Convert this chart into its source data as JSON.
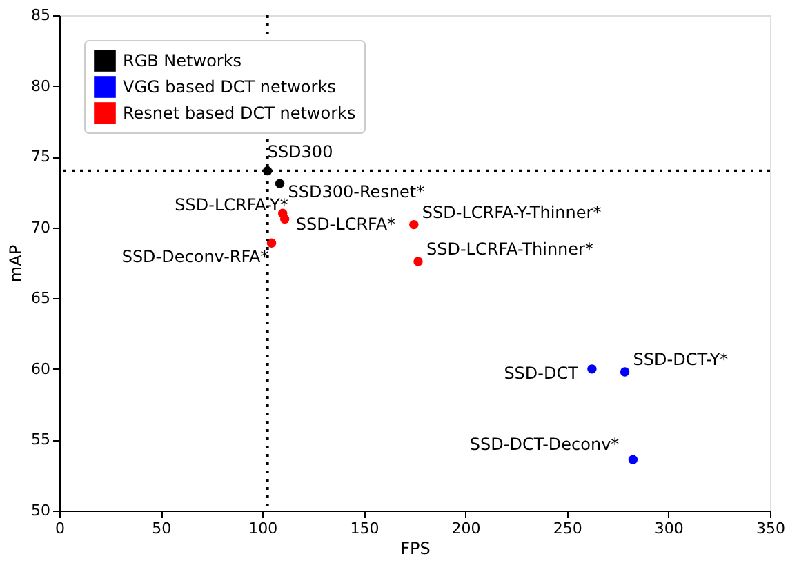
{
  "chart_data": {
    "type": "scatter",
    "xlabel": "FPS",
    "ylabel": "mAP",
    "xlim": [
      0,
      350
    ],
    "xticks": [
      0,
      50,
      100,
      150,
      200,
      250,
      300,
      350
    ],
    "ylim": [
      50,
      85
    ],
    "yticks": [
      50,
      55,
      60,
      65,
      70,
      75,
      80,
      85
    ],
    "series": [
      {
        "name": "RGB Networks",
        "color": "#000000",
        "x": [
          102.5,
          108.6
        ],
        "values": [
          74.0,
          73.1
        ]
      },
      {
        "name": "VGG based DCT networks",
        "color": "#0000ff",
        "x": [
          262.3,
          278.5,
          282.5
        ],
        "values": [
          60.0,
          59.8,
          53.6
        ]
      },
      {
        "name": "Resnet based DCT networks",
        "color": "#ff0000",
        "x": [
          110.0,
          111.0,
          104.5,
          174.6,
          176.7
        ],
        "values": [
          71.0,
          70.6,
          68.9,
          70.2,
          67.6
        ]
      }
    ],
    "annotations": [
      {
        "text": "SSD300",
        "x": 102.5,
        "y": 74.0
      },
      {
        "text": "SSD300-Resnet*",
        "x": 108.6,
        "y": 73.1
      },
      {
        "text": "SSD-LCRFA-Y*",
        "x": 110.0,
        "y": 71.0
      },
      {
        "text": "SSD-LCRFA*",
        "x": 111.0,
        "y": 70.6
      },
      {
        "text": "SSD-Deconv-RFA*",
        "x": 104.5,
        "y": 68.9
      },
      {
        "text": "SSD-LCRFA-Y-Thinner*",
        "x": 174.6,
        "y": 70.2
      },
      {
        "text": "SSD-LCRFA-Thinner*",
        "x": 176.7,
        "y": 67.6
      },
      {
        "text": "SSD-DCT",
        "x": 262.3,
        "y": 60.0
      },
      {
        "text": "SSD-DCT-Y*",
        "x": 278.5,
        "y": 59.8
      },
      {
        "text": "SSD-DCT-Deconv*",
        "x": 282.5,
        "y": 53.6
      }
    ],
    "ref_lines": [
      {
        "axis": "x",
        "value": 102.5,
        "line_style": "dotted",
        "color": "#000000"
      },
      {
        "axis": "y",
        "value": 74.0,
        "line_style": "dotted",
        "color": "#000000"
      }
    ],
    "marker": "circle",
    "grid": false,
    "legend": "top left"
  }
}
